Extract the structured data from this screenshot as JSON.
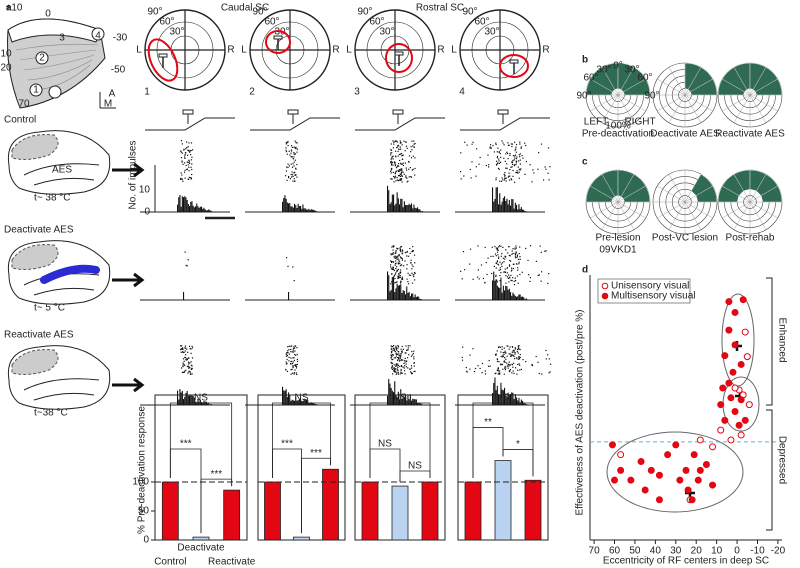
{
  "figure": {
    "panel_a": {
      "letter": "a",
      "caudal": "Caudal SC",
      "rostral": "Rostral SC",
      "map_labels": [
        "+10",
        "0",
        "-30",
        "10",
        "20",
        "-50",
        "70",
        "3",
        "4",
        "2",
        "1",
        "A",
        "M"
      ],
      "conditions": [
        {
          "title": "Control",
          "area": "AES",
          "temp": "t~ 38 °C"
        },
        {
          "title": "Deactivate AES",
          "temp": "t~ 5 °C"
        },
        {
          "title": "Reactivate AES",
          "temp": "t~38 °C"
        }
      ],
      "hist_ylabel": "No. of impulses",
      "hist_ticks": [
        10,
        0
      ],
      "polar_labels": [
        "90°",
        "60°",
        "30°",
        "L",
        "R"
      ],
      "unit_numbers": [
        "1",
        "2",
        "3",
        "4"
      ],
      "bar_ylabel": "% Pre-deactivation response"
    },
    "panel_b": {
      "letter": "b",
      "labels": [
        "Pre-deactivation",
        "Deactivate AES",
        "Reactivate AES"
      ],
      "angles": [
        "30°",
        "0°",
        "60°",
        "90°"
      ],
      "left": "LEFT",
      "right": "RIGHT",
      "radius": "100%"
    },
    "panel_c": {
      "letter": "c",
      "labels": [
        "Pre-lesion",
        "Post-VC lesion",
        "Post-rehab"
      ],
      "subject": "09VKD1"
    },
    "panel_d": {
      "letter": "d",
      "enhanced": "Enhanced",
      "depressed": "Depressed"
    }
  },
  "chart_data": [
    {
      "type": "bar",
      "categories": [
        "Control",
        "Deactivate",
        "Reactivate"
      ],
      "values": [
        100,
        5,
        86
      ],
      "colors": [
        "#e30613",
        "#b9d3f0",
        "#e30613"
      ],
      "ylim": [
        0,
        250
      ],
      "yticks": [
        0,
        50,
        100
      ],
      "reference_line": 100,
      "annotations": [
        "NS",
        "***",
        "***"
      ]
    },
    {
      "type": "bar",
      "categories": [
        null,
        null,
        null
      ],
      "values": [
        100,
        5,
        122
      ],
      "colors": [
        "#e30613",
        "#b9d3f0",
        "#e30613"
      ],
      "ylim": [
        0,
        250
      ],
      "reference_line": 100,
      "annotations": [
        "NS",
        "***",
        "***"
      ]
    },
    {
      "type": "bar",
      "categories": [
        null,
        null,
        null
      ],
      "values": [
        100,
        93,
        100
      ],
      "colors": [
        "#e30613",
        "#b9d3f0",
        "#e30613"
      ],
      "ylim": [
        0,
        250
      ],
      "reference_line": 100,
      "annotations": [
        "NS",
        "NS",
        "NS"
      ]
    },
    {
      "type": "bar",
      "categories": [
        null,
        null,
        null
      ],
      "values": [
        100,
        137,
        103
      ],
      "colors": [
        "#e30613",
        "#b9d3f0",
        "#e30613"
      ],
      "ylim": [
        0,
        250
      ],
      "reference_line": 100,
      "annotations": [
        "NS",
        "**",
        "*"
      ]
    },
    {
      "type": "scatter",
      "x_label": "Eccentricity of RF centers in deep SC",
      "y_label": "Effectiveness of AES deactivation (post/pre %)",
      "xlim": [
        72,
        -22
      ],
      "xticks": [
        70,
        60,
        50,
        40,
        30,
        20,
        10,
        0,
        -10,
        -20
      ],
      "ylim": [
        0,
        2.6
      ],
      "reference_line": 1,
      "legend": "upper left",
      "series": [
        {
          "name": "Unisensory visual",
          "color": "#e30613",
          "filled": false,
          "x": [
            -5,
            -4,
            -1,
            -3,
            -6,
            1,
            57,
            23,
            18,
            12,
            8,
            3,
            -2
          ],
          "values": [
            1.87,
            2.12,
            1.53,
            1.48,
            1.38,
            1.55,
            0.87,
            0.41,
            1.02,
            0.95,
            1.12,
            1.02,
            1.07
          ]
        },
        {
          "name": "Multisensory visual",
          "color": "#e30613",
          "filled": true,
          "x": [
            4,
            1,
            -3,
            4,
            1,
            6,
            2,
            -2,
            4,
            8,
            3,
            -2,
            1,
            -4,
            6,
            -1,
            7,
            61,
            57,
            52,
            47,
            42,
            38,
            34,
            30,
            28,
            25,
            24,
            22,
            21,
            19,
            18,
            15,
            12,
            60,
            45,
            38
          ],
          "values": [
            2.43,
            2.32,
            2.45,
            2.14,
            1.99,
            1.88,
            1.71,
            1.79,
            1.6,
            1.38,
            1.45,
            1.43,
            1.31,
            1.22,
            1.22,
            1.17,
            1.55,
            0.97,
            0.71,
            0.61,
            0.8,
            0.71,
            0.41,
            0.87,
            0.97,
            0.61,
            0.71,
            0.51,
            0.41,
            0.87,
            0.61,
            0.71,
            0.77,
            0.56,
            0.61,
            0.51,
            0.66
          ]
        }
      ]
    }
  ]
}
